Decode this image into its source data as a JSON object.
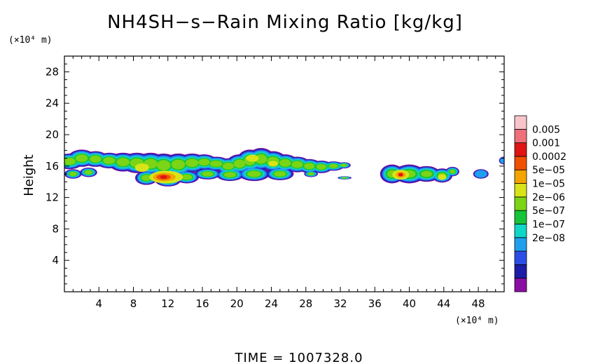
{
  "chart_data": {
    "type": "heatmap",
    "title": "NH4SH−s−Rain Mixing Ratio [kg/kg]",
    "ylabel": "Height",
    "x_unit_label": "(×10⁴ m)",
    "y_unit_label": "(×10⁴ m)",
    "xlim": [
      0,
      51
    ],
    "ylim": [
      0,
      30
    ],
    "x_ticks": [
      4,
      8,
      12,
      16,
      20,
      24,
      28,
      32,
      36,
      40,
      44,
      48
    ],
    "y_ticks": [
      4,
      8,
      12,
      16,
      20,
      24,
      28
    ],
    "footer": "TIME  =  1007328.0",
    "colorbar": {
      "labels": [
        "0.005",
        "0.001",
        "0.0002",
        "5e−05",
        "1e−05",
        "2e−06",
        "5e−07",
        "1e−07",
        "2e−08"
      ],
      "colors": [
        "#8b0fa3",
        "#1c1ca8",
        "#2b4fe6",
        "#1fa0ee",
        "#10d6c8",
        "#16c43a",
        "#7bd415",
        "#d8e418",
        "#f4a400",
        "#f05000",
        "#e01414",
        "#f0707a",
        "#f8c4ca"
      ]
    },
    "features": [
      {
        "name": "main-band",
        "x_range": [
          0,
          33.5
        ],
        "y_range": [
          13.2,
          18.3
        ],
        "peak_value": "0.001",
        "peak_x": 11.5,
        "peak_y": 14.6
      },
      {
        "name": "right-cell",
        "x_range": [
          37,
          46
        ],
        "y_range": [
          13.8,
          16.4
        ],
        "peak_value": "0.001",
        "peak_x": 39,
        "peak_y": 14.9
      },
      {
        "name": "small-cell",
        "x_range": [
          47,
          49.5
        ],
        "y_range": [
          14.4,
          15.8
        ],
        "peak_value": "1e−07"
      },
      {
        "name": "edge-cell",
        "x_range": [
          50.6,
          51
        ],
        "y_range": [
          16.2,
          17.2
        ],
        "peak_value": "5e−07"
      }
    ]
  }
}
